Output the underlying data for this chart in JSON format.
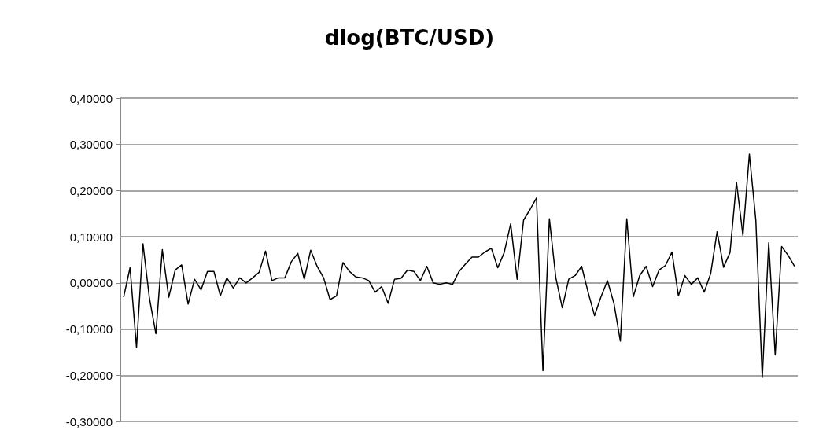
{
  "chart_data": {
    "type": "line",
    "title": "dlog(BTC/USD)",
    "categories": [
      null,
      null,
      null,
      null,
      null,
      null,
      null,
      null,
      null,
      null,
      null,
      null,
      null,
      null,
      null,
      null,
      null,
      null,
      null,
      null,
      null,
      null,
      null,
      null,
      null,
      null,
      null,
      null,
      null,
      null,
      null,
      null,
      null,
      null,
      null,
      null,
      null,
      null,
      null,
      null,
      null,
      null,
      null,
      null,
      null,
      null,
      null,
      null,
      null,
      null,
      null,
      null,
      null,
      null,
      null,
      null,
      null,
      null,
      null,
      null,
      null,
      null,
      null,
      null,
      null,
      null,
      null,
      null,
      null,
      null,
      null,
      null,
      null,
      null,
      null,
      null,
      null,
      null,
      null,
      null,
      null,
      null,
      null,
      null,
      null,
      null,
      null,
      null,
      null,
      null,
      null,
      null,
      null,
      null,
      null,
      null,
      null,
      null,
      null,
      null,
      null,
      null,
      null,
      null,
      null
    ],
    "series": [
      {
        "color": "#000000",
        "values": [
          -0.031,
          0.033,
          -0.14,
          0.085,
          -0.033,
          -0.11,
          0.072,
          -0.031,
          0.028,
          0.039,
          -0.046,
          0.008,
          -0.015,
          0.025,
          0.025,
          -0.028,
          0.011,
          -0.011,
          0.011,
          0.0,
          0.011,
          0.023,
          0.069,
          0.005,
          0.011,
          0.011,
          0.046,
          0.064,
          0.008,
          0.071,
          0.036,
          0.011,
          -0.036,
          -0.028,
          0.044,
          0.025,
          0.013,
          0.011,
          0.005,
          -0.02,
          -0.008,
          -0.044,
          0.008,
          0.01,
          0.028,
          0.025,
          0.005,
          0.036,
          0.0,
          -0.003,
          0.0,
          -0.003,
          0.025,
          0.041,
          0.056,
          0.056,
          0.067,
          0.075,
          0.033,
          0.066,
          0.128,
          0.008,
          0.136,
          0.159,
          0.184,
          -0.19,
          0.139,
          0.011,
          -0.054,
          0.008,
          0.016,
          0.036,
          -0.02,
          -0.071,
          -0.03,
          0.005,
          -0.044,
          -0.126,
          0.139,
          -0.03,
          0.016,
          0.036,
          -0.008,
          0.028,
          0.038,
          0.067,
          -0.028,
          0.016,
          -0.003,
          0.011,
          -0.02,
          0.02,
          0.111,
          0.034,
          0.066,
          0.218,
          0.103,
          0.279,
          0.136,
          -0.205,
          0.087,
          -0.156,
          0.079,
          0.06,
          0.036
        ]
      }
    ],
    "ylim": [
      -0.3,
      0.4
    ],
    "yticks": [
      {
        "value": -0.3,
        "label": "-0,30000"
      },
      {
        "value": -0.2,
        "label": "-0,20000"
      },
      {
        "value": -0.1,
        "label": "-0,10000"
      },
      {
        "value": 0,
        "label": "0,00000"
      },
      {
        "value": 0.1,
        "label": "0,10000"
      },
      {
        "value": 0.2,
        "label": "0,20000"
      },
      {
        "value": 0.3,
        "label": "0,30000"
      },
      {
        "value": 0.4,
        "label": "0,40000"
      }
    ],
    "grid": "y",
    "tick_labels": "y",
    "line_style": "solid"
  }
}
